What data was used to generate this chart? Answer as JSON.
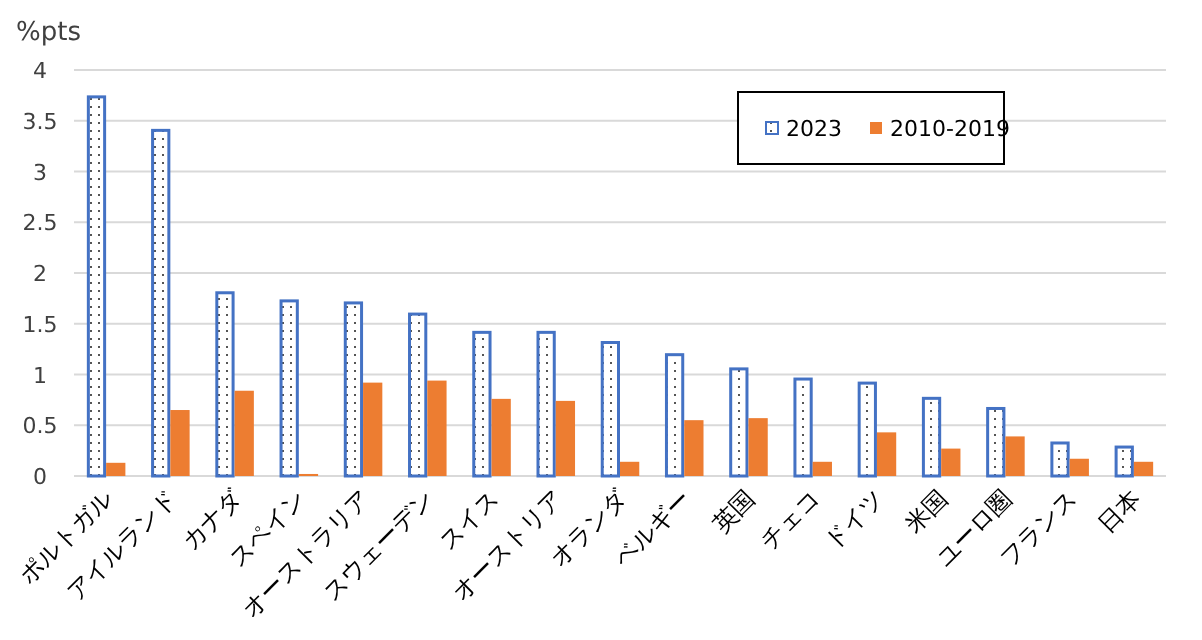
{
  "chart_data": {
    "type": "bar",
    "ylabel": "%pts",
    "categories": [
      "ポルトガル",
      "アイルランド",
      "カナダ",
      "スペイン",
      "オーストラリア",
      "スウェーデン",
      "スイス",
      "オーストリア",
      "オランダ",
      "ベルギー",
      "英国",
      "チェコ",
      "ドイツ",
      "米国",
      "ユーロ圏",
      "フランス",
      "日本"
    ],
    "series": [
      {
        "name": "2023",
        "color": "#4472c4",
        "values": [
          3.75,
          3.42,
          1.82,
          1.74,
          1.72,
          1.61,
          1.43,
          1.43,
          1.33,
          1.21,
          1.07,
          0.97,
          0.93,
          0.78,
          0.68,
          0.34,
          0.3
        ]
      },
      {
        "name": "2010-2019",
        "color": "#ed7d31",
        "values": [
          0.13,
          0.65,
          0.84,
          0.02,
          0.92,
          0.94,
          0.76,
          0.74,
          0.14,
          0.55,
          0.57,
          0.14,
          0.43,
          0.27,
          0.39,
          0.17,
          0.14
        ]
      }
    ],
    "ylim": [
      0,
      4
    ],
    "yticks": [
      0,
      0.5,
      1,
      1.5,
      2,
      2.5,
      3,
      3.5,
      4
    ],
    "grid": "y",
    "legend": "top right"
  }
}
